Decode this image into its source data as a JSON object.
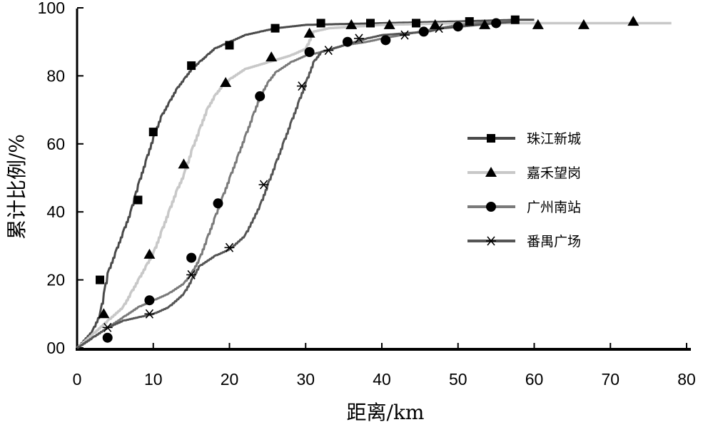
{
  "chart_data": {
    "type": "line",
    "xlabel": "距离/km",
    "ylabel": "累计比例/%",
    "xlim": [
      0,
      80
    ],
    "ylim": [
      0,
      100
    ],
    "x_ticks": [
      "0",
      "10",
      "20",
      "30",
      "40",
      "50",
      "60",
      "70",
      "80"
    ],
    "y_ticks": [
      "00",
      "20",
      "40",
      "60",
      "80",
      "100"
    ],
    "legend_position": "right",
    "grid": false,
    "series": [
      {
        "name": "珠江新城",
        "marker": "square",
        "color": "#4a4a4a",
        "curve": [
          [
            0,
            0
          ],
          [
            2,
            5
          ],
          [
            3,
            10
          ],
          [
            3.5,
            16
          ],
          [
            4,
            22
          ],
          [
            5,
            28
          ],
          [
            6,
            34
          ],
          [
            7,
            40
          ],
          [
            7.5,
            44
          ],
          [
            8,
            48
          ],
          [
            9,
            55
          ],
          [
            10,
            62
          ],
          [
            11,
            68
          ],
          [
            12,
            72
          ],
          [
            13,
            76
          ],
          [
            14,
            79
          ],
          [
            15,
            82
          ],
          [
            16,
            84
          ],
          [
            17,
            86
          ],
          [
            18,
            88
          ],
          [
            19,
            89
          ],
          [
            20,
            90
          ],
          [
            22,
            92
          ],
          [
            24,
            93
          ],
          [
            26,
            94
          ],
          [
            30,
            95
          ],
          [
            40,
            95.5
          ],
          [
            50,
            96
          ],
          [
            58,
            96.5
          ],
          [
            60,
            96.5
          ]
        ],
        "markers": [
          [
            3,
            20
          ],
          [
            8,
            43.5
          ],
          [
            10,
            63.5
          ],
          [
            15,
            83
          ],
          [
            20,
            89
          ],
          [
            26,
            94
          ],
          [
            32,
            95.5
          ],
          [
            38.5,
            95.5
          ],
          [
            44.5,
            95.5
          ],
          [
            51.5,
            96
          ],
          [
            57.5,
            96.5
          ]
        ]
      },
      {
        "name": "嘉禾望岗",
        "marker": "triangle",
        "color": "#c8c8c8",
        "curve": [
          [
            0,
            0
          ],
          [
            2,
            4
          ],
          [
            4,
            8
          ],
          [
            6,
            12
          ],
          [
            7,
            16
          ],
          [
            8,
            20
          ],
          [
            9,
            24
          ],
          [
            10,
            28
          ],
          [
            11,
            34
          ],
          [
            12,
            40
          ],
          [
            13,
            46
          ],
          [
            14,
            51
          ],
          [
            15,
            58
          ],
          [
            16,
            64
          ],
          [
            17,
            70
          ],
          [
            18,
            74
          ],
          [
            19,
            77
          ],
          [
            20,
            79
          ],
          [
            22,
            82
          ],
          [
            25,
            84
          ],
          [
            28,
            86
          ],
          [
            30,
            88
          ],
          [
            31,
            93
          ],
          [
            33,
            94
          ],
          [
            40,
            95
          ],
          [
            50,
            95.5
          ],
          [
            60,
            95.5
          ],
          [
            70,
            95.5
          ],
          [
            78,
            95.5
          ]
        ],
        "markers": [
          [
            3.5,
            10
          ],
          [
            9.5,
            27.5
          ],
          [
            14,
            54
          ],
          [
            19.5,
            78
          ],
          [
            25.5,
            85.5
          ],
          [
            30.5,
            92.5
          ],
          [
            36,
            95
          ],
          [
            41,
            95
          ],
          [
            47,
            95
          ],
          [
            53.5,
            95
          ],
          [
            60.5,
            95
          ],
          [
            66.5,
            95
          ],
          [
            73,
            96
          ]
        ]
      },
      {
        "name": "广州南站",
        "marker": "circle",
        "color": "#7a7a7a",
        "curve": [
          [
            0,
            0
          ],
          [
            2,
            3
          ],
          [
            4,
            6
          ],
          [
            6,
            9
          ],
          [
            8,
            12
          ],
          [
            10,
            14
          ],
          [
            12,
            16
          ],
          [
            14,
            19
          ],
          [
            15,
            22
          ],
          [
            16,
            26
          ],
          [
            17,
            32
          ],
          [
            18,
            38
          ],
          [
            19,
            44
          ],
          [
            20,
            50
          ],
          [
            21,
            56
          ],
          [
            22,
            62
          ],
          [
            23,
            68
          ],
          [
            24,
            74
          ],
          [
            25,
            78
          ],
          [
            26,
            81
          ],
          [
            28,
            84
          ],
          [
            30,
            86
          ],
          [
            32,
            87
          ],
          [
            35,
            89
          ],
          [
            38,
            90
          ],
          [
            40,
            91
          ],
          [
            45,
            93
          ],
          [
            50,
            95
          ],
          [
            55,
            96
          ],
          [
            58,
            96
          ]
        ],
        "markers": [
          [
            4,
            3
          ],
          [
            9.5,
            14
          ],
          [
            15,
            26.5
          ],
          [
            18.5,
            42.5
          ],
          [
            24,
            74
          ],
          [
            30.5,
            87
          ],
          [
            35.5,
            90
          ],
          [
            40.5,
            90.5
          ],
          [
            45.5,
            93
          ],
          [
            50,
            94.5
          ],
          [
            55,
            95.5
          ]
        ]
      },
      {
        "name": "番禺广场",
        "marker": "asterisk",
        "color": "#555555",
        "curve": [
          [
            0,
            0
          ],
          [
            2,
            3
          ],
          [
            4,
            6
          ],
          [
            6,
            8
          ],
          [
            8,
            9
          ],
          [
            10,
            10
          ],
          [
            12,
            12
          ],
          [
            14,
            16
          ],
          [
            15,
            20
          ],
          [
            16,
            24
          ],
          [
            18,
            27
          ],
          [
            20,
            29
          ],
          [
            22,
            33
          ],
          [
            24,
            42
          ],
          [
            25,
            48
          ],
          [
            26,
            54
          ],
          [
            27,
            60
          ],
          [
            28,
            66
          ],
          [
            29,
            72
          ],
          [
            30,
            78
          ],
          [
            31,
            84
          ],
          [
            32,
            87
          ],
          [
            35,
            89
          ],
          [
            38,
            91
          ],
          [
            40,
            92
          ],
          [
            43,
            92.5
          ],
          [
            46,
            93
          ],
          [
            48,
            94
          ],
          [
            55,
            95.5
          ],
          [
            58,
            96
          ]
        ],
        "markers": [
          [
            4,
            6
          ],
          [
            9.5,
            10
          ],
          [
            15,
            21.5
          ],
          [
            20,
            29.5
          ],
          [
            24.5,
            48
          ],
          [
            29.5,
            77
          ],
          [
            33,
            87.5
          ],
          [
            37,
            91
          ],
          [
            43,
            92
          ],
          [
            47.5,
            94
          ]
        ]
      }
    ]
  }
}
